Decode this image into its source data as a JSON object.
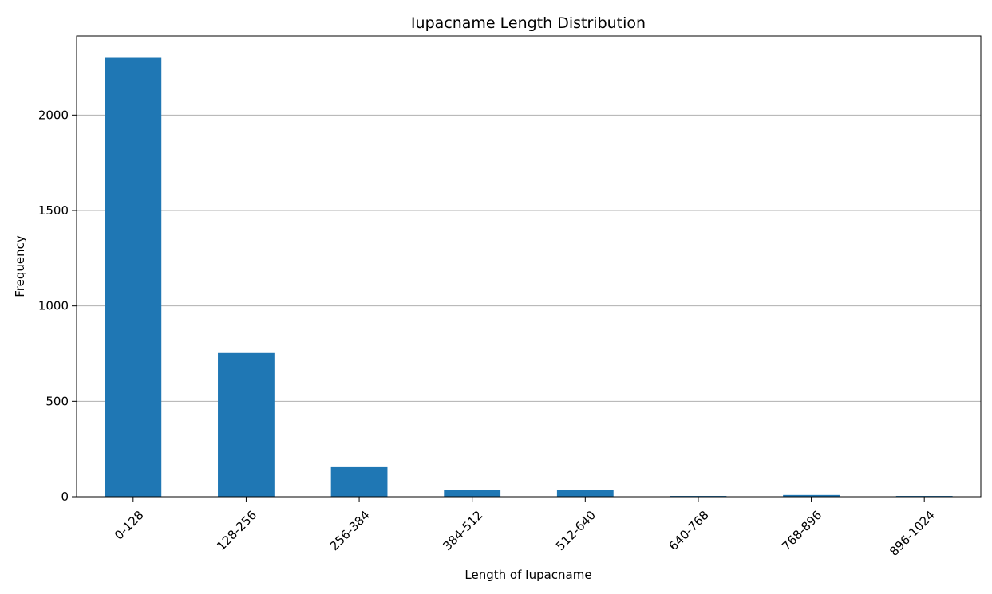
{
  "chart_data": {
    "type": "bar",
    "title": "Iupacname Length Distribution",
    "xlabel": "Length of Iupacname",
    "ylabel": "Frequency",
    "categories": [
      "0-128",
      "128-256",
      "256-384",
      "384-512",
      "512-640",
      "640-768",
      "768-896",
      "896-1024"
    ],
    "values": [
      2300,
      753,
      155,
      35,
      35,
      4,
      9,
      4
    ],
    "ylim": [
      0,
      2415
    ],
    "yticks": [
      0,
      500,
      1000,
      1500,
      2000
    ],
    "grid": "y",
    "bar_color": "#1f77b4",
    "xtick_rotation": 45
  }
}
